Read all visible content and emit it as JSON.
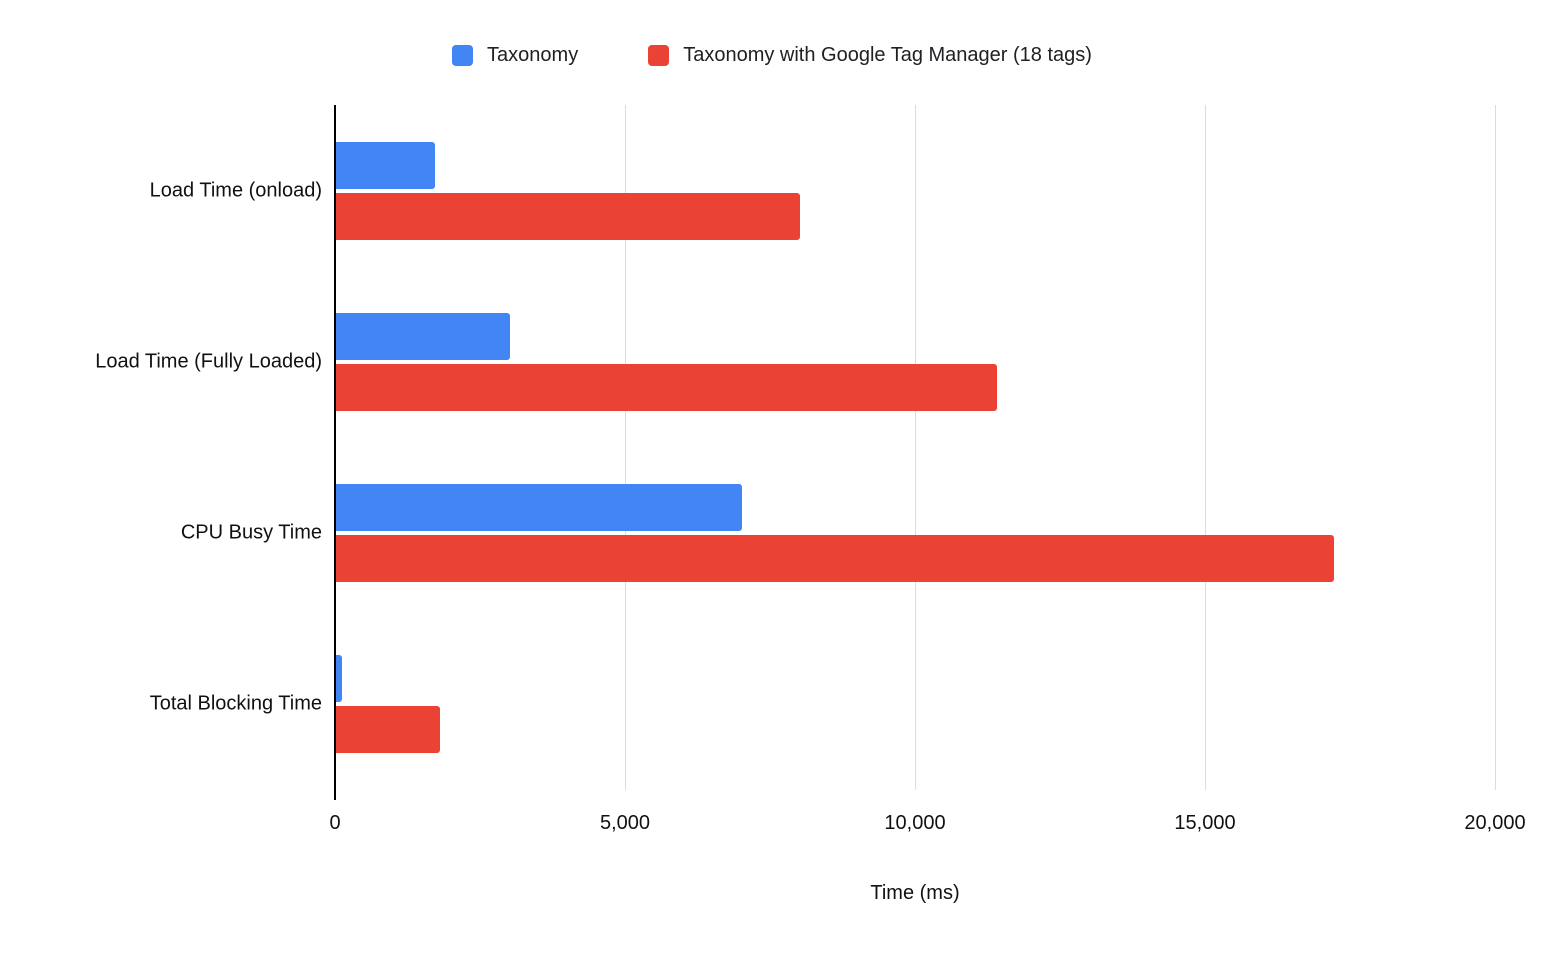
{
  "chart_data": {
    "type": "bar",
    "orientation": "horizontal",
    "title": "",
    "xlabel": "Time (ms)",
    "categories": [
      "Load Time (onload)",
      "Load Time (Fully Loaded)",
      "CPU Busy Time",
      "Total Blocking Time"
    ],
    "series": [
      {
        "name": "Taxonomy",
        "color": "#4285F4",
        "values": [
          1700,
          3000,
          7000,
          100
        ]
      },
      {
        "name": "Taxonomy with Google Tag Manager (18 tags)",
        "color": "#EA4335",
        "values": [
          8000,
          11400,
          17200,
          1800
        ]
      }
    ],
    "xlim": [
      0,
      20000
    ],
    "x_ticks": [
      0,
      5000,
      10000,
      15000,
      20000
    ],
    "x_tick_labels": [
      "0",
      "5,000",
      "10,000",
      "15,000",
      "20,000"
    ],
    "grid": true,
    "legend_position": "top",
    "background_color": "#ffffff",
    "gridline_color": "#dadce0"
  }
}
